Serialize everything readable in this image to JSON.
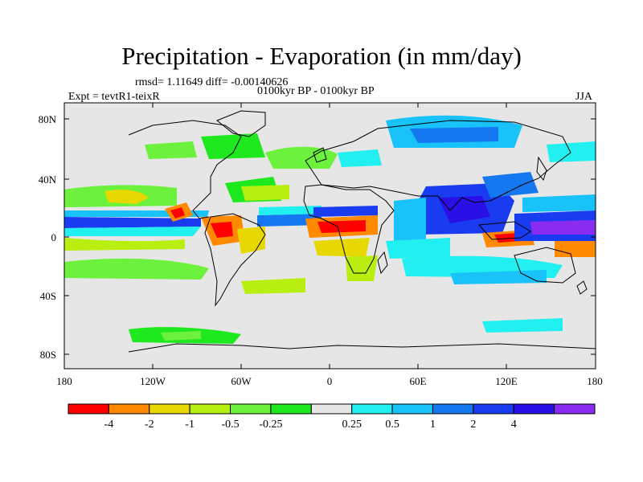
{
  "title": "Precipitation - Evaporation (in mm/day)",
  "stats": "rmsd= 1.11649 diff= -0.00140626",
  "period": "0100kyr BP - 0100kyr BP",
  "experiment": "Expt = tevtR1-teixR",
  "season": "JJA",
  "lat_labels": [
    "80N",
    "40N",
    "0",
    "40S",
    "80S"
  ],
  "lon_labels": [
    "180",
    "120W",
    "60W",
    "0",
    "60E",
    "120E",
    "180"
  ],
  "colorbar": {
    "labels": [
      "-4",
      "-2",
      "-1",
      "-0.5",
      "-0.25",
      "0.25",
      "0.5",
      "1",
      "2",
      "4"
    ],
    "colors": [
      "#ff0000",
      "#ff8a00",
      "#e6d800",
      "#b8ee10",
      "#6cf23c",
      "#1ee81e",
      "#e6e6e6",
      "#22f0f0",
      "#19c2f8",
      "#1578f0",
      "#1a3cf0",
      "#2a10e6",
      "#8a2cf0"
    ]
  }
}
